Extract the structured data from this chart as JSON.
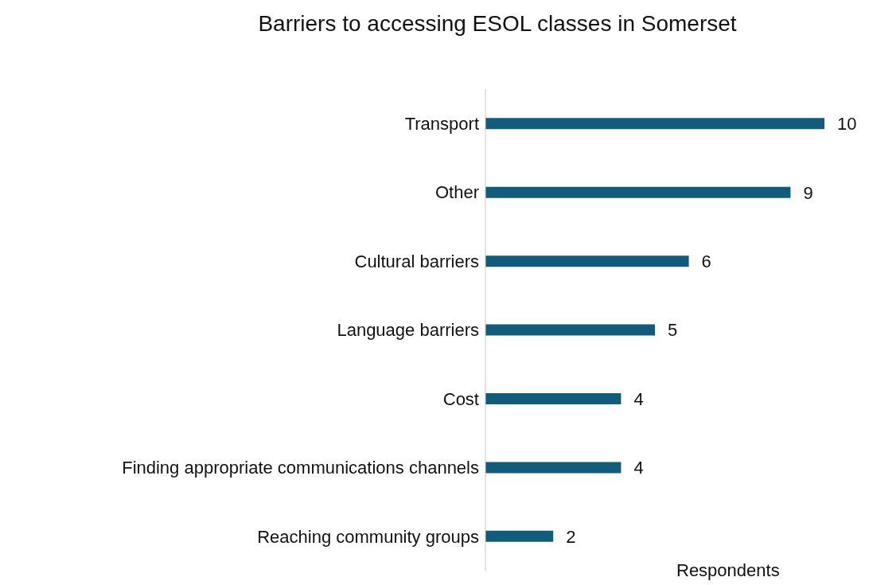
{
  "chart_data": {
    "type": "bar",
    "orientation": "horizontal",
    "title": "Barriers to accessing ESOL classes in Somerset",
    "xlabel": "Respondents",
    "categories": [
      "Transport",
      "Other",
      "Cultural barriers",
      "Language barriers",
      "Cost",
      "Finding appropriate communications channels",
      "Reaching community groups"
    ],
    "values": [
      10,
      9,
      6,
      5,
      4,
      4,
      2
    ],
    "color": "#135b7a",
    "data_labels": true,
    "tick_labels": "y",
    "grid": false,
    "legend": false
  }
}
